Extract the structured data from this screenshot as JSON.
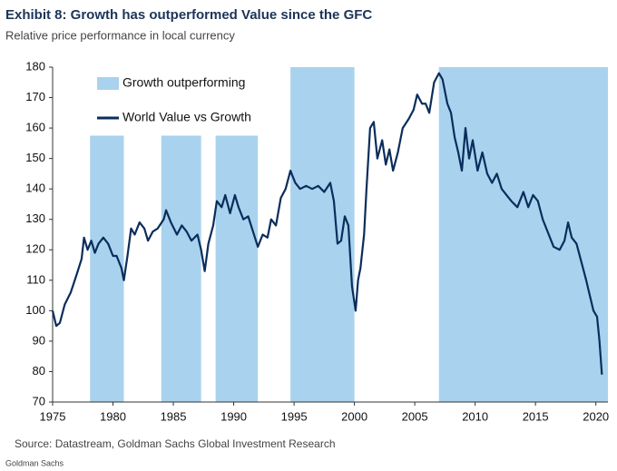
{
  "chart_data": {
    "type": "line",
    "title": "Exhibit 8: Growth has outperformed Value since the GFC",
    "subtitle": "Relative price performance in local currency",
    "source": "Source: Datastream, Goldman Sachs Global Investment Research",
    "footer": "Goldman Sachs",
    "shade_label": "Growth outperforming",
    "shade_color": "#a9d2ee",
    "shaded_regions": [
      {
        "start": 1978.1,
        "end": 1980.9,
        "top": 157.5
      },
      {
        "start": 1984.0,
        "end": 1987.3,
        "top": 157.5
      },
      {
        "start": 1988.5,
        "end": 1992.0,
        "top": 157.5
      },
      {
        "start": 1994.7,
        "end": 2000.0,
        "top": 180
      },
      {
        "start": 2007.0,
        "end": 2021.0,
        "top": 180
      }
    ],
    "x": [
      1975.0,
      1975.3,
      1975.6,
      1976.0,
      1976.5,
      1977.0,
      1977.4,
      1977.6,
      1977.9,
      1978.2,
      1978.5,
      1978.8,
      1979.2,
      1979.6,
      1980.0,
      1980.3,
      1980.7,
      1980.9,
      1981.2,
      1981.5,
      1981.8,
      1982.2,
      1982.6,
      1982.9,
      1983.3,
      1983.7,
      1984.2,
      1984.4,
      1984.8,
      1985.3,
      1985.7,
      1986.1,
      1986.5,
      1987.0,
      1987.3,
      1987.6,
      1987.9,
      1988.3,
      1988.6,
      1989.0,
      1989.3,
      1989.7,
      1990.1,
      1990.4,
      1990.8,
      1991.2,
      1991.6,
      1992.0,
      1992.4,
      1992.8,
      1993.1,
      1993.5,
      1993.9,
      1994.3,
      1994.7,
      1995.1,
      1995.5,
      1996.0,
      1996.5,
      1997.0,
      1997.5,
      1998.0,
      1998.3,
      1998.6,
      1998.9,
      1999.2,
      1999.5,
      1999.8,
      2000.1,
      2000.3,
      2000.5,
      2000.8,
      2001.0,
      2001.3,
      2001.6,
      2001.9,
      2002.3,
      2002.6,
      2002.9,
      2003.2,
      2003.6,
      2004.0,
      2004.5,
      2004.9,
      2005.2,
      2005.6,
      2005.9,
      2006.2,
      2006.6,
      2007.0,
      2007.3,
      2007.7,
      2008.0,
      2008.3,
      2008.6,
      2008.9,
      2009.2,
      2009.5,
      2009.8,
      2010.2,
      2010.6,
      2011.0,
      2011.4,
      2011.8,
      2012.2,
      2012.6,
      2013.0,
      2013.5,
      2014.0,
      2014.4,
      2014.8,
      2015.2,
      2015.6,
      2016.0,
      2016.5,
      2017.0,
      2017.4,
      2017.7,
      2018.0,
      2018.4,
      2018.8,
      2019.2,
      2019.5,
      2019.8,
      2020.1,
      2020.3,
      2020.5
    ],
    "series": [
      {
        "name": "World Value vs Growth",
        "color": "#0b2d5b",
        "values": [
          100,
          95,
          96,
          102,
          106,
          112,
          117,
          124,
          120,
          123,
          119,
          122,
          124,
          122,
          118,
          118,
          114,
          110,
          118,
          127,
          125,
          129,
          127,
          123,
          126,
          127,
          130,
          133,
          129,
          125,
          128,
          126,
          123,
          125,
          120,
          113,
          122,
          128,
          136,
          134,
          138,
          132,
          138,
          134,
          130,
          131,
          126,
          121,
          125,
          124,
          130,
          128,
          137,
          140,
          146,
          142,
          140,
          141,
          140,
          141,
          139,
          142,
          136,
          122,
          123,
          131,
          128,
          108,
          100,
          110,
          114,
          125,
          140,
          160,
          162,
          150,
          156,
          148,
          153,
          146,
          152,
          160,
          163,
          166,
          171,
          168,
          168,
          165,
          175,
          178,
          176,
          168,
          165,
          157,
          152,
          146,
          160,
          150,
          156,
          146,
          152,
          145,
          142,
          145,
          140,
          138,
          136,
          134,
          139,
          134,
          138,
          136,
          130,
          126,
          121,
          120,
          123,
          129,
          124,
          122,
          116,
          110,
          105,
          100,
          98,
          90,
          79
        ]
      }
    ],
    "xlim": [
      1975,
      2021
    ],
    "xticks": [
      1975,
      1980,
      1985,
      1990,
      1995,
      2000,
      2005,
      2010,
      2015,
      2020
    ],
    "ylim": [
      70,
      180
    ],
    "yticks": [
      70,
      80,
      90,
      100,
      110,
      120,
      130,
      140,
      150,
      160,
      170,
      180
    ]
  }
}
